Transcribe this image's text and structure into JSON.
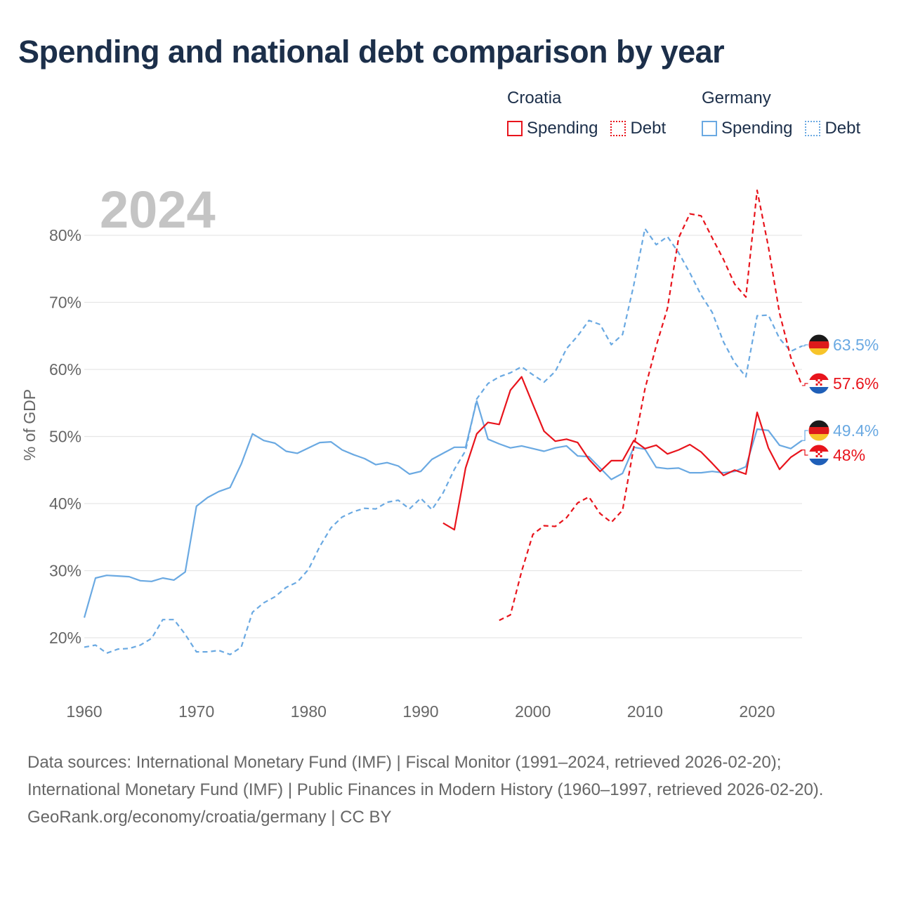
{
  "title": "Spending and national debt comparison by year",
  "legend": {
    "groups": [
      {
        "name": "Croatia",
        "color": "#e8141c",
        "items": [
          {
            "label": "Spending",
            "style": "solid"
          },
          {
            "label": "Debt",
            "style": "dotted"
          }
        ]
      },
      {
        "name": "Germany",
        "color": "#6aa9e2",
        "items": [
          {
            "label": "Spending",
            "style": "solid"
          },
          {
            "label": "Debt",
            "style": "dotted"
          }
        ]
      }
    ]
  },
  "year_label": "2024",
  "footer": {
    "sources": "Data sources: International Monetary Fund (IMF) | Fiscal Monitor (1991–2024, retrieved 2026-02-20); International Monetary Fund (IMF) | Public Finances in Modern History (1960–1997, retrieved 2026-02-20).",
    "credit": "GeoRank.org/economy/croatia/germany | CC BY"
  },
  "colors": {
    "croatia": "#e8141c",
    "germany": "#6aa9e2",
    "grid": "#e6e6e6",
    "axis_text": "#666666",
    "year": "#c4c4c4"
  },
  "chart_data": {
    "type": "line",
    "title": "Spending and national debt comparison by year",
    "xlabel": "",
    "ylabel": "% of GDP",
    "xlim": [
      1960,
      2025
    ],
    "ylim": [
      13.5,
      87
    ],
    "xticks": [
      1960,
      1970,
      1980,
      1990,
      2000,
      2010,
      2020
    ],
    "xtick_labels": [
      "1960",
      "1970",
      "1980",
      "1990",
      "2000",
      "2010",
      "2020"
    ],
    "yticks": [
      20,
      30,
      40,
      50,
      60,
      70,
      80
    ],
    "ytick_labels": [
      "20%",
      "30%",
      "40%",
      "50%",
      "60%",
      "70%",
      "80%"
    ],
    "grid": true,
    "legend_position": "top-right",
    "series": [
      {
        "name": "Germany Spending",
        "country": "Germany",
        "measure": "Spending",
        "style": "solid",
        "color": "#6aa9e2",
        "x": [
          1960,
          1961,
          1962,
          1963,
          1964,
          1965,
          1966,
          1967,
          1968,
          1969,
          1970,
          1971,
          1972,
          1973,
          1974,
          1975,
          1976,
          1977,
          1978,
          1979,
          1980,
          1981,
          1982,
          1983,
          1984,
          1985,
          1986,
          1987,
          1988,
          1989,
          1990,
          1991,
          1992,
          1993,
          1994,
          1995,
          1996,
          1997,
          1998,
          1999,
          2000,
          2001,
          2002,
          2003,
          2004,
          2005,
          2006,
          2007,
          2008,
          2009,
          2010,
          2011,
          2012,
          2013,
          2014,
          2015,
          2016,
          2017,
          2018,
          2019,
          2020,
          2021,
          2022,
          2023,
          2024
        ],
        "y": [
          23.0,
          28.9,
          29.3,
          29.2,
          29.1,
          28.5,
          28.4,
          28.9,
          28.6,
          29.8,
          39.6,
          40.9,
          41.8,
          42.4,
          45.9,
          50.4,
          49.4,
          49.0,
          47.8,
          47.5,
          48.3,
          49.1,
          49.2,
          48.0,
          47.3,
          46.7,
          45.8,
          46.1,
          45.6,
          44.4,
          44.8,
          46.6,
          47.5,
          48.4,
          48.4,
          55.3,
          49.6,
          48.9,
          48.3,
          48.6,
          48.2,
          47.8,
          48.3,
          48.6,
          47.1,
          47.0,
          45.3,
          43.6,
          44.5,
          48.4,
          48.1,
          45.4,
          45.2,
          45.3,
          44.6,
          44.6,
          44.8,
          44.6,
          44.8,
          45.5,
          51.1,
          50.9,
          48.7,
          48.2,
          49.4
        ],
        "end_label": "49.4%"
      },
      {
        "name": "Germany Debt",
        "country": "Germany",
        "measure": "Debt",
        "style": "dashed",
        "color": "#6aa9e2",
        "x": [
          1960,
          1961,
          1962,
          1963,
          1964,
          1965,
          1966,
          1967,
          1968,
          1969,
          1970,
          1971,
          1972,
          1973,
          1974,
          1975,
          1976,
          1977,
          1978,
          1979,
          1980,
          1981,
          1982,
          1983,
          1984,
          1985,
          1986,
          1987,
          1988,
          1989,
          1990,
          1991,
          1992,
          1993,
          1994,
          1995,
          1996,
          1997,
          1998,
          1999,
          2000,
          2001,
          2002,
          2003,
          2004,
          2005,
          2006,
          2007,
          2008,
          2009,
          2010,
          2011,
          2012,
          2013,
          2014,
          2015,
          2016,
          2017,
          2018,
          2019,
          2020,
          2021,
          2022,
          2023,
          2024
        ],
        "y": [
          18.6,
          18.9,
          17.7,
          18.3,
          18.4,
          18.9,
          19.9,
          22.7,
          22.7,
          20.5,
          17.9,
          17.9,
          18.1,
          17.5,
          18.6,
          23.8,
          25.2,
          26.1,
          27.5,
          28.3,
          30.2,
          33.6,
          36.4,
          38.0,
          38.8,
          39.3,
          39.2,
          40.2,
          40.5,
          39.2,
          40.8,
          39.1,
          41.6,
          45.1,
          47.9,
          55.6,
          57.9,
          58.9,
          59.5,
          60.4,
          59.2,
          58.1,
          59.7,
          63.1,
          65.0,
          67.3,
          66.7,
          63.7,
          65.2,
          72.6,
          81.0,
          78.6,
          79.8,
          77.4,
          74.4,
          71.1,
          68.5,
          64.1,
          61.0,
          58.9,
          68.0,
          68.1,
          64.6,
          62.7,
          63.5
        ],
        "end_label": "63.5%"
      },
      {
        "name": "Croatia Spending",
        "country": "Croatia",
        "measure": "Spending",
        "style": "solid",
        "color": "#e8141c",
        "x": [
          1992,
          1993,
          1994,
          1995,
          1996,
          1997,
          1998,
          1999,
          2000,
          2001,
          2002,
          2003,
          2004,
          2005,
          2006,
          2007,
          2008,
          2009,
          2010,
          2011,
          2012,
          2013,
          2014,
          2015,
          2016,
          2017,
          2018,
          2019,
          2020,
          2021,
          2022,
          2023,
          2024
        ],
        "y": [
          37.1,
          36.1,
          45.3,
          50.4,
          52.1,
          51.8,
          56.9,
          58.9,
          54.8,
          50.8,
          49.3,
          49.6,
          49.1,
          46.6,
          44.8,
          46.4,
          46.4,
          49.4,
          48.2,
          48.7,
          47.4,
          48.0,
          48.8,
          47.7,
          46.0,
          44.2,
          45.0,
          44.4,
          53.6,
          48.3,
          45.1,
          46.9,
          48.0
        ],
        "end_label": "48%"
      },
      {
        "name": "Croatia Debt",
        "country": "Croatia",
        "measure": "Debt",
        "style": "dashed",
        "color": "#e8141c",
        "x": [
          1997,
          1998,
          1999,
          2000,
          2001,
          2002,
          2003,
          2004,
          2005,
          2006,
          2007,
          2008,
          2009,
          2010,
          2011,
          2012,
          2013,
          2014,
          2015,
          2016,
          2017,
          2018,
          2019,
          2020,
          2021,
          2022,
          2023,
          2024
        ],
        "y": [
          22.6,
          23.4,
          29.9,
          35.4,
          36.7,
          36.6,
          37.9,
          40.1,
          41.0,
          38.5,
          37.2,
          39.0,
          48.4,
          57.1,
          63.5,
          69.1,
          79.6,
          83.2,
          82.9,
          79.6,
          76.4,
          72.7,
          70.8,
          86.7,
          78.3,
          68.4,
          61.8,
          57.6
        ],
        "end_label": "57.6%"
      }
    ]
  }
}
